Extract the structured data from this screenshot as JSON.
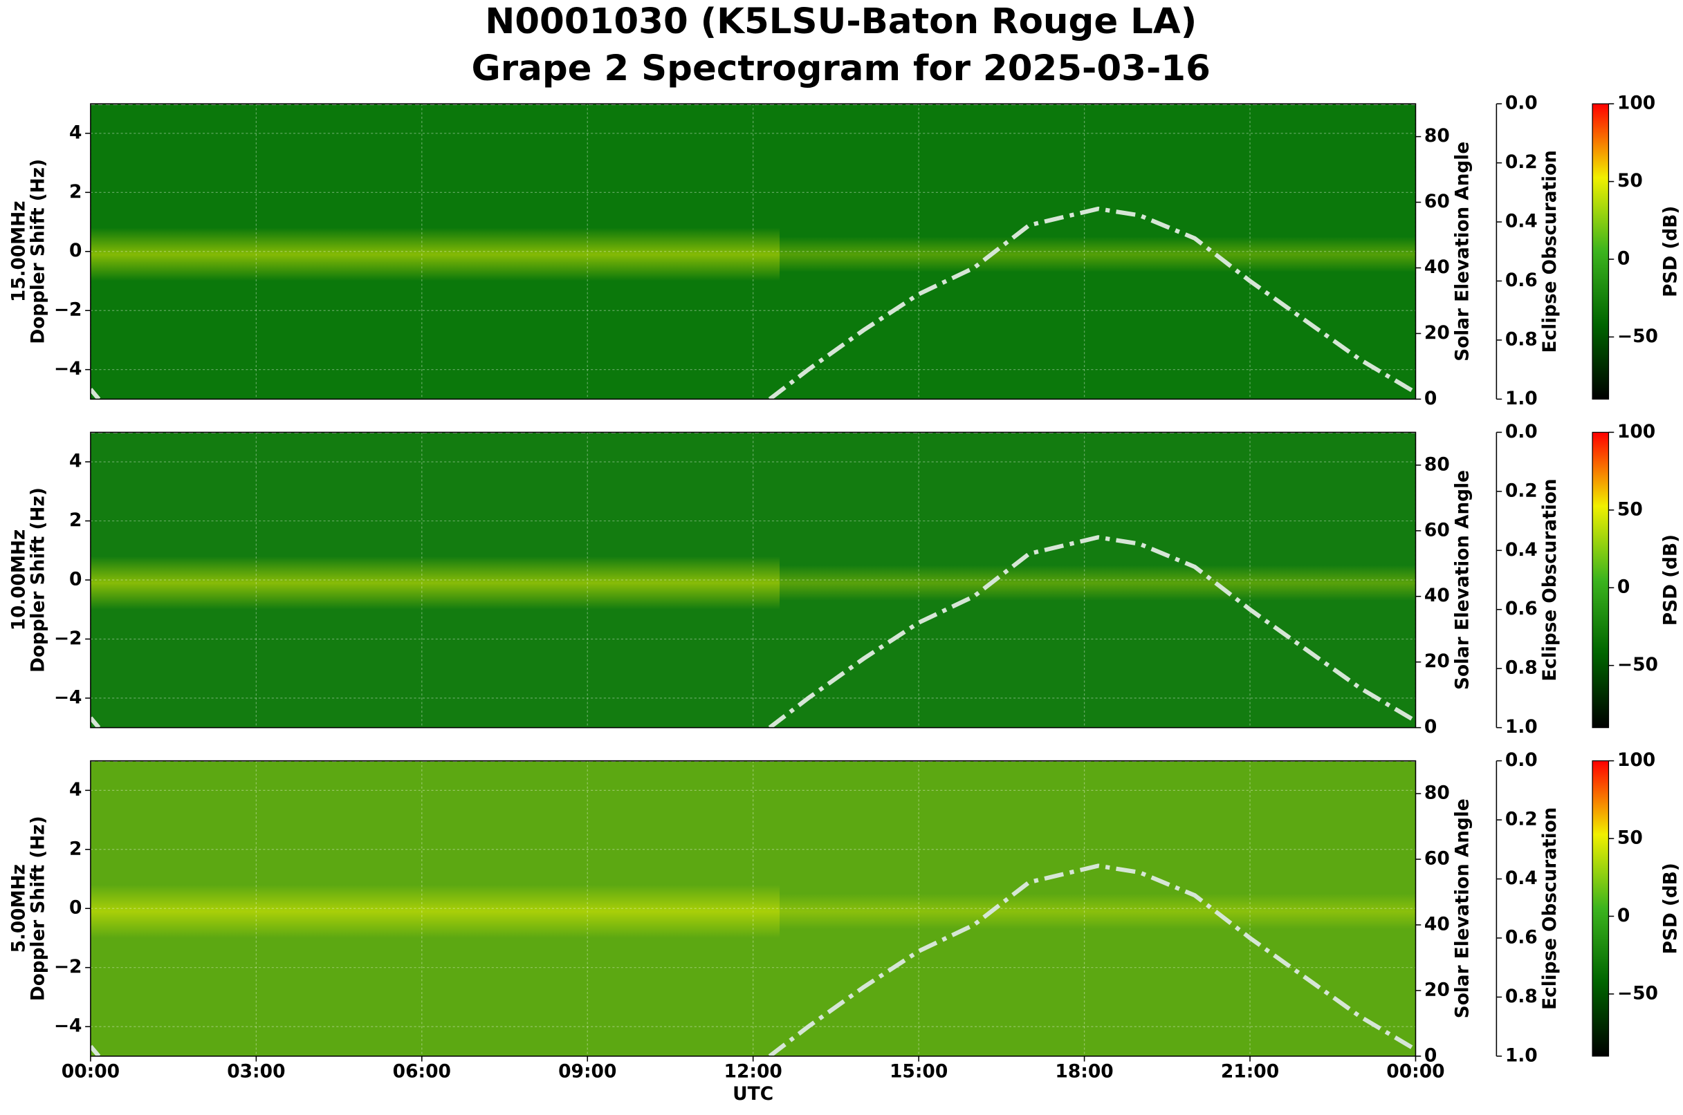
{
  "title": "N0001030 (K5LSU-Baton Rouge LA)",
  "subtitle": "Grape 2 Spectrogram for 2025-03-16",
  "xlabel": "UTC",
  "xlim": [
    0,
    24
  ],
  "xticks": [
    {
      "value": 0,
      "label": "00:00"
    },
    {
      "value": 3,
      "label": "03:00"
    },
    {
      "value": 6,
      "label": "06:00"
    },
    {
      "value": 9,
      "label": "09:00"
    },
    {
      "value": 12,
      "label": "12:00"
    },
    {
      "value": 15,
      "label": "15:00"
    },
    {
      "value": 18,
      "label": "18:00"
    },
    {
      "value": 21,
      "label": "21:00"
    },
    {
      "value": 24,
      "label": "00:00"
    }
  ],
  "chart_data": [
    {
      "type": "spectrogram",
      "ylabel": [
        "15.00MHz",
        "Doppler Shift (Hz)"
      ],
      "ylim": [
        -5,
        5
      ],
      "yticks": [
        {
          "value": -4,
          "label": "−4"
        },
        {
          "value": -2,
          "label": "−2"
        },
        0,
        2,
        4
      ],
      "grid": true,
      "background": "#0b780b",
      "y2label": "Solar Elevation Angle",
      "y2lim": [
        0,
        90
      ],
      "y2ticks": [
        0,
        20,
        40,
        60,
        80
      ],
      "solar_elevation": {
        "color": "#d6e6d6",
        "axis": "y2",
        "x": [
          0,
          0.15,
          12,
          12.3,
          13,
          14,
          15,
          16,
          17,
          18.25,
          19,
          20,
          21,
          22,
          23,
          24
        ],
        "values": [
          3,
          0,
          null,
          0,
          9,
          21,
          32,
          40,
          53,
          58,
          56,
          49,
          36,
          24,
          12,
          2
        ]
      },
      "y3label": "Eclipse Obscuration",
      "y3lim": [
        1.0,
        0.0
      ],
      "y3ticks": [
        {
          "value": 0,
          "label": "0.0"
        },
        {
          "value": 0.2,
          "label": "0.2"
        },
        {
          "value": 0.4,
          "label": "0.4"
        },
        {
          "value": 0.6,
          "label": "0.6"
        },
        {
          "value": 0.8,
          "label": "0.8"
        },
        {
          "value": 1,
          "label": "1.0"
        }
      ],
      "eclipse_obscuration": {
        "color": "#9a9a9a",
        "axis": "y3",
        "x": [
          0,
          24
        ],
        "values": [
          0,
          0
        ]
      },
      "colorbar": {
        "label": "PSD (dB)",
        "lim": [
          -90,
          100
        ],
        "ticks": [
          {
            "value": -50,
            "label": "−50"
          },
          0,
          50,
          100
        ],
        "colors": [
          "#000000",
          "#006400",
          "#3cb41e",
          "#f0f000",
          "#ff0000"
        ]
      }
    },
    {
      "type": "spectrogram",
      "ylabel": [
        "10.00MHz",
        "Doppler Shift (Hz)"
      ],
      "ylim": [
        -5,
        5
      ],
      "yticks": [
        {
          "value": -4,
          "label": "−4"
        },
        {
          "value": -2,
          "label": "−2"
        },
        0,
        2,
        4
      ],
      "grid": true,
      "background": "#137c10",
      "y2label": "Solar Elevation Angle",
      "y2lim": [
        0,
        90
      ],
      "y2ticks": [
        0,
        20,
        40,
        60,
        80
      ],
      "solar_elevation": {
        "color": "#d6e6d6",
        "axis": "y2",
        "x": [
          0,
          0.15,
          12,
          12.3,
          13,
          14,
          15,
          16,
          17,
          18.25,
          19,
          20,
          21,
          22,
          23,
          24
        ],
        "values": [
          3,
          0,
          null,
          0,
          9,
          21,
          32,
          40,
          53,
          58,
          56,
          49,
          36,
          24,
          12,
          2
        ]
      },
      "y3label": "Eclipse Obscuration",
      "y3lim": [
        1.0,
        0.0
      ],
      "y3ticks": [
        {
          "value": 0,
          "label": "0.0"
        },
        {
          "value": 0.2,
          "label": "0.2"
        },
        {
          "value": 0.4,
          "label": "0.4"
        },
        {
          "value": 0.6,
          "label": "0.6"
        },
        {
          "value": 0.8,
          "label": "0.8"
        },
        {
          "value": 1,
          "label": "1.0"
        }
      ],
      "eclipse_obscuration": {
        "color": "#9a9a9a",
        "axis": "y3",
        "x": [
          0,
          24
        ],
        "values": [
          0,
          0
        ]
      },
      "colorbar": {
        "label": "PSD (dB)",
        "lim": [
          -90,
          100
        ],
        "ticks": [
          {
            "value": -50,
            "label": "−50"
          },
          0,
          50,
          100
        ],
        "colors": [
          "#000000",
          "#006400",
          "#3cb41e",
          "#f0f000",
          "#ff0000"
        ]
      }
    },
    {
      "type": "spectrogram",
      "ylabel": [
        "5.00MHz",
        "Doppler Shift (Hz)"
      ],
      "ylim": [
        -5,
        5
      ],
      "yticks": [
        {
          "value": -4,
          "label": "−4"
        },
        {
          "value": -2,
          "label": "−2"
        },
        0,
        2,
        4
      ],
      "grid": true,
      "background": "#5ca812",
      "y2label": "Solar Elevation Angle",
      "y2lim": [
        0,
        90
      ],
      "y2ticks": [
        0,
        20,
        40,
        60,
        80
      ],
      "solar_elevation": {
        "color": "#d6e6d6",
        "axis": "y2",
        "x": [
          0,
          0.15,
          12,
          12.3,
          13,
          14,
          15,
          16,
          17,
          18.25,
          19,
          20,
          21,
          22,
          23,
          24
        ],
        "values": [
          3,
          0,
          null,
          0,
          9,
          21,
          32,
          40,
          53,
          58,
          56,
          49,
          36,
          24,
          12,
          2
        ]
      },
      "y3label": "Eclipse Obscuration",
      "y3lim": [
        1.0,
        0.0
      ],
      "y3ticks": [
        {
          "value": 0,
          "label": "0.0"
        },
        {
          "value": 0.2,
          "label": "0.2"
        },
        {
          "value": 0.4,
          "label": "0.4"
        },
        {
          "value": 0.6,
          "label": "0.6"
        },
        {
          "value": 0.8,
          "label": "0.8"
        },
        {
          "value": 1,
          "label": "1.0"
        }
      ],
      "eclipse_obscuration": {
        "color": "#9a9a9a",
        "axis": "y3",
        "x": [
          0,
          24
        ],
        "values": [
          0,
          0
        ]
      },
      "colorbar": {
        "label": "PSD (dB)",
        "lim": [
          -90,
          100
        ],
        "ticks": [
          {
            "value": -50,
            "label": "−50"
          },
          0,
          50,
          100
        ],
        "colors": [
          "#000000",
          "#006400",
          "#3cb41e",
          "#f0f000",
          "#ff0000"
        ]
      }
    }
  ]
}
